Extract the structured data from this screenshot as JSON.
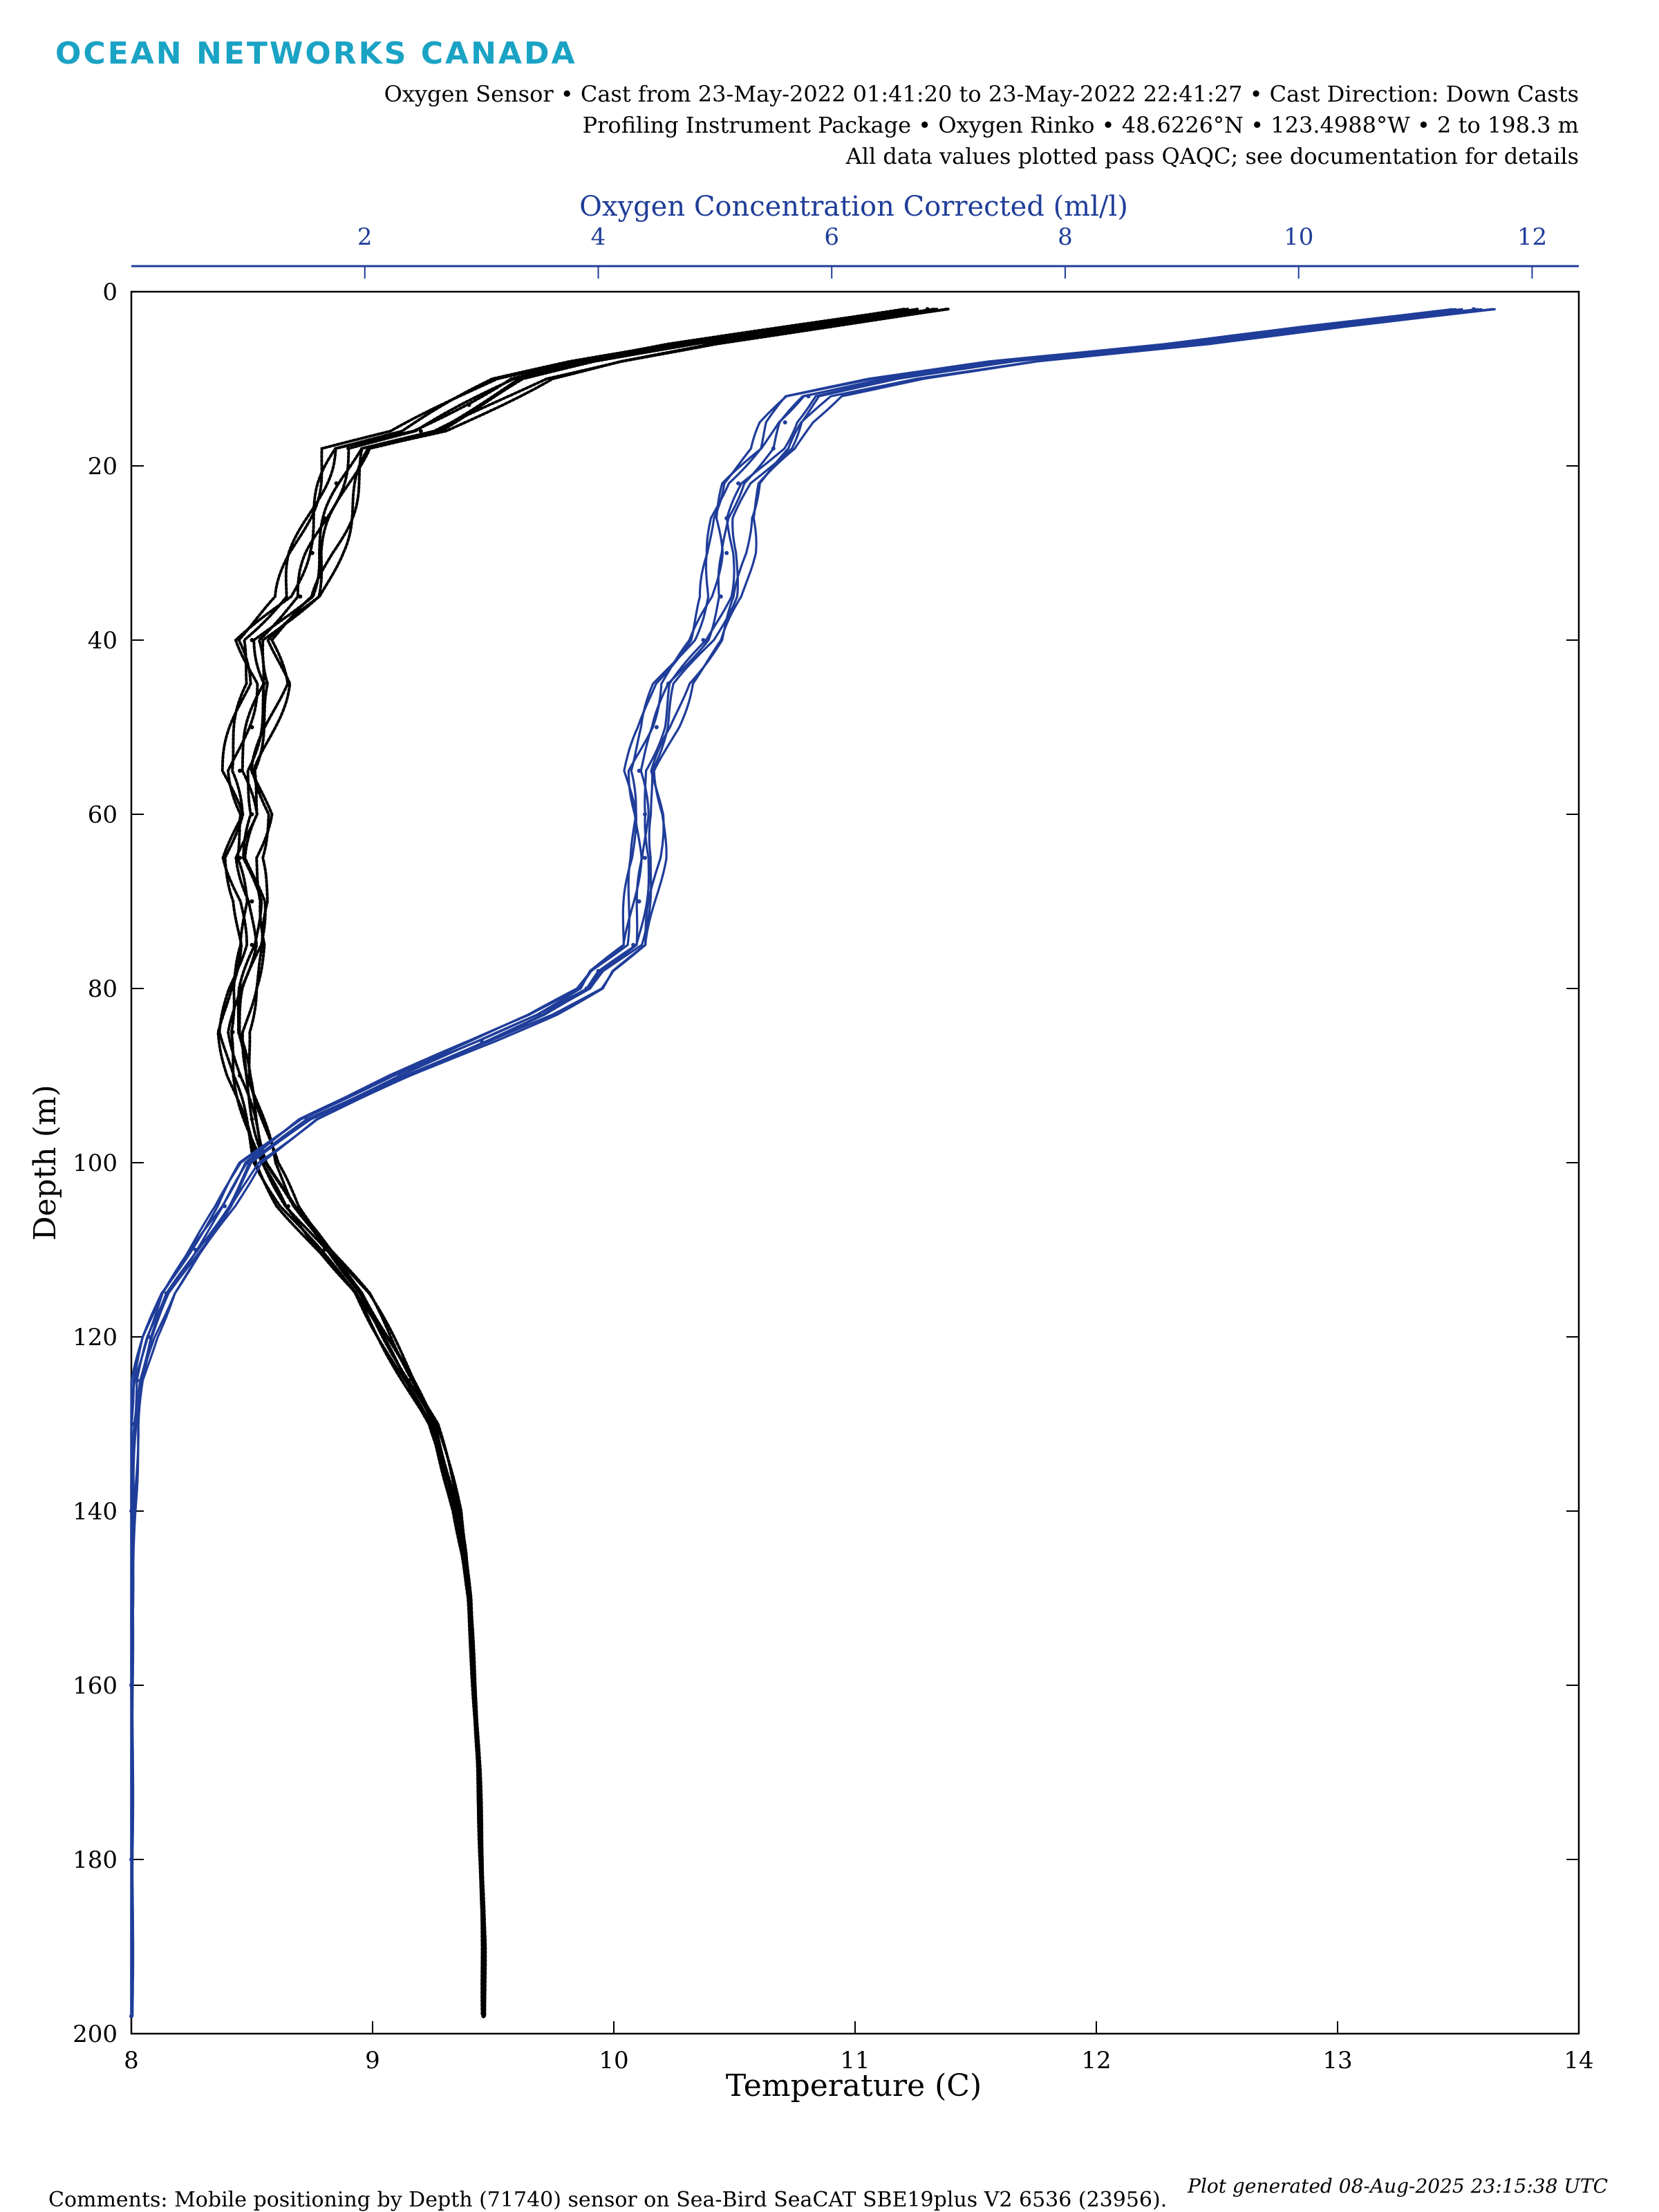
{
  "header": {
    "logo_text": "OCEAN NETWORKS CANADA",
    "subtitle_lines": [
      "Oxygen Sensor • Cast from 23-May-2022 01:41:20 to 23-May-2022 22:41:27 • Cast Direction: Down Casts",
      "Profiling Instrument Package • Oxygen Rinko • 48.6226°N • 123.4988°W • 2 to 198.3 m",
      "All data values plotted pass QAQC; see documentation for details"
    ]
  },
  "footer": {
    "comments": "Comments: Mobile positioning by Depth (71740) sensor on Sea-Bird SeaCAT SBE19plus V2 6536 (23956).",
    "generated": "Plot generated 08-Aug-2025 23:15:38 UTC"
  },
  "colors": {
    "temperature": "#000000",
    "oxygen": "#1f3d99",
    "axis": "#000000"
  },
  "chart_data": {
    "type": "line",
    "y_axis": {
      "label": "Depth (m)",
      "range": [
        0,
        200
      ],
      "reversed": true,
      "ticks": [
        0,
        20,
        40,
        60,
        80,
        100,
        120,
        140,
        160,
        180,
        200
      ]
    },
    "x_axis_bottom": {
      "label": "Temperature (C)",
      "range": [
        8,
        14
      ],
      "ticks": [
        8,
        9,
        10,
        11,
        12,
        13,
        14
      ]
    },
    "x_axis_top": {
      "label": "Oxygen Concentration Corrected (ml/l)",
      "range": [
        0,
        12.4
      ],
      "ticks": [
        2,
        4,
        6,
        8,
        10,
        12
      ]
    },
    "grid": false,
    "series": [
      {
        "axis": "bottom",
        "style": "dots",
        "depth": [
          2,
          4,
          6,
          8,
          10,
          13,
          16,
          18,
          22,
          26,
          30,
          35,
          40,
          45,
          50,
          55,
          60,
          65,
          70,
          75,
          80,
          85,
          90,
          95,
          100,
          105,
          110,
          115,
          120,
          125,
          130,
          135,
          140,
          145,
          150,
          160,
          170,
          180,
          190,
          198
        ],
        "values": [
          11.3,
          10.8,
          10.3,
          9.9,
          9.6,
          9.4,
          9.2,
          8.9,
          8.85,
          8.8,
          8.75,
          8.7,
          8.5,
          8.55,
          8.5,
          8.45,
          8.5,
          8.45,
          8.5,
          8.5,
          8.45,
          8.42,
          8.45,
          8.5,
          8.55,
          8.65,
          8.8,
          8.95,
          9.05,
          9.15,
          9.25,
          9.3,
          9.35,
          9.38,
          9.4,
          9.42,
          9.44,
          9.45,
          9.46,
          9.46
        ]
      },
      {
        "axis": "top",
        "style": "line",
        "depth": [
          2,
          4,
          6,
          8,
          10,
          12,
          15,
          18,
          22,
          26,
          30,
          35,
          40,
          45,
          50,
          55,
          60,
          65,
          70,
          75,
          78,
          80,
          83,
          86,
          90,
          95,
          100,
          105,
          110,
          115,
          120,
          125,
          130,
          140,
          160,
          180,
          198
        ],
        "values": [
          11.5,
          10.2,
          9.0,
          7.5,
          6.5,
          5.8,
          5.6,
          5.5,
          5.2,
          5.1,
          5.1,
          5.05,
          4.9,
          4.6,
          4.5,
          4.35,
          4.4,
          4.4,
          4.35,
          4.3,
          4.0,
          3.9,
          3.5,
          3.0,
          2.3,
          1.5,
          1.0,
          0.8,
          0.55,
          0.3,
          0.15,
          0.05,
          0.02,
          0.0,
          0.0,
          0.0,
          0.0
        ]
      }
    ]
  }
}
